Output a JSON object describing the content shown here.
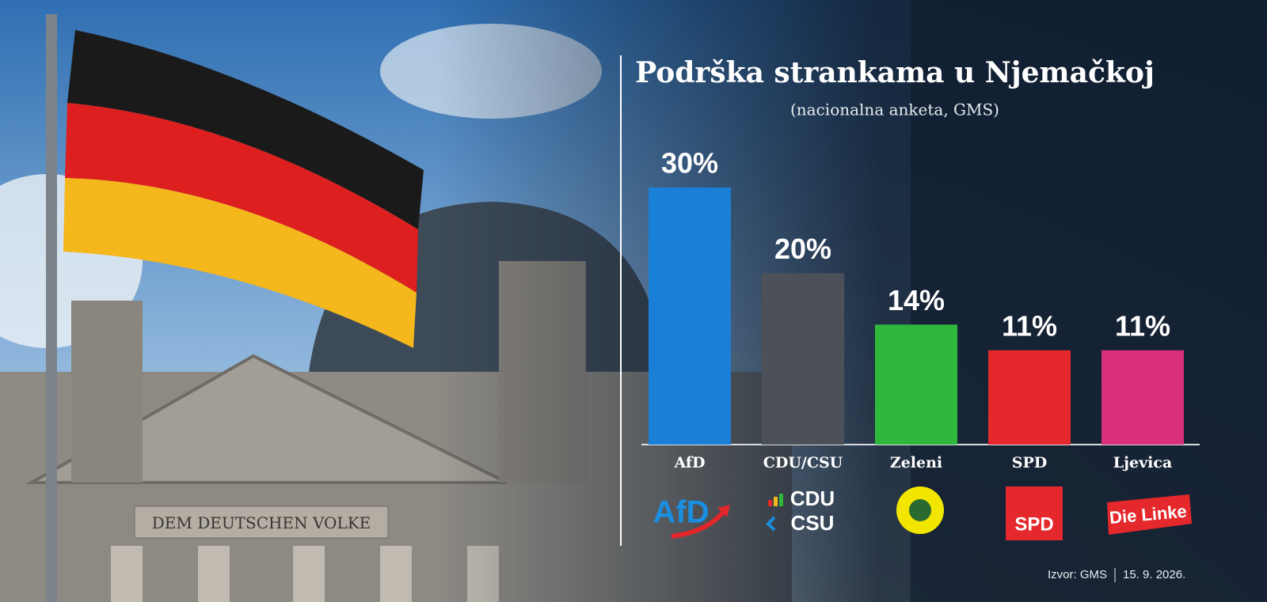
{
  "chart_data": {
    "type": "bar",
    "title": "Podrška strankama u Njemačkoj",
    "subtitle": "(nacionalna anketa, GMS)",
    "categories": [
      "AfD",
      "CDU/CSU",
      "Zeleni",
      "SPD",
      "Ljevica"
    ],
    "values": [
      30,
      20,
      14,
      11,
      11
    ],
    "value_labels": [
      "30%",
      "20%",
      "14%",
      "11%",
      "11%"
    ],
    "colors": [
      "#1a7fd6",
      "#4b5059",
      "#2fb83c",
      "#e4282b",
      "#d8317a"
    ],
    "logo_texts": {
      "afd": "AfD",
      "cdu": "CDU",
      "csu": "CSU",
      "spd": "SPD",
      "linke": "Die Linke"
    },
    "source": "Izvor: GMS",
    "date": "15. 9. 2026.",
    "photo_inscription": "DEM DEUTSCHEN VOLKE"
  }
}
